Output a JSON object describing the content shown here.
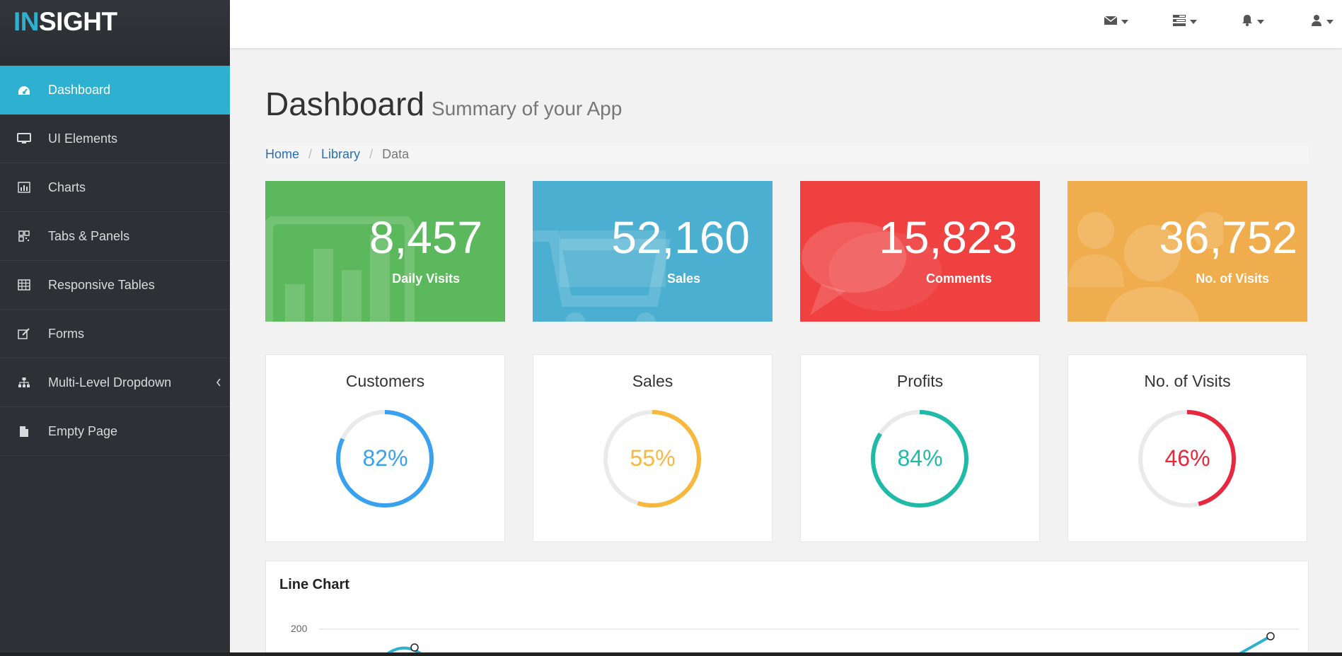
{
  "brand": {
    "accent": "IN",
    "rest": "SIGHT"
  },
  "sidebar": {
    "items": [
      {
        "label": "Dashboard",
        "icon": "dashboard-icon",
        "active": true
      },
      {
        "label": "UI Elements",
        "icon": "desktop-icon"
      },
      {
        "label": "Charts",
        "icon": "bar-chart-icon"
      },
      {
        "label": "Tabs & Panels",
        "icon": "qrcode-icon"
      },
      {
        "label": "Responsive Tables",
        "icon": "table-icon"
      },
      {
        "label": "Forms",
        "icon": "edit-icon"
      },
      {
        "label": "Multi-Level Dropdown",
        "icon": "sitemap-icon"
      },
      {
        "label": "Empty Page",
        "icon": "file-icon"
      }
    ]
  },
  "topbar": {
    "icons": [
      "envelope-icon",
      "tasks-icon",
      "bell-icon",
      "user-icon"
    ]
  },
  "header": {
    "title": "Dashboard",
    "subtitle": "Summary of your App"
  },
  "breadcrumb": {
    "home": "Home",
    "library": "Library",
    "current": "Data",
    "separator": "/"
  },
  "stats": [
    {
      "value": "8,457",
      "label": "Daily Visits",
      "color": "#5cb85c",
      "icon": "bar-chart-icon"
    },
    {
      "value": "52,160",
      "label": "Sales",
      "color": "#4aafd0",
      "icon": "shopping-cart-icon"
    },
    {
      "value": "15,823",
      "label": "Comments",
      "color": "#ef4140",
      "icon": "comments-icon"
    },
    {
      "value": "36,752",
      "label": "No. of Visits",
      "color": "#f0ad4e",
      "icon": "users-icon"
    }
  ],
  "donuts": [
    {
      "title": "Customers",
      "percent": 82,
      "label": "82%",
      "color": "#39a2f0"
    },
    {
      "title": "Sales",
      "percent": 55,
      "label": "55%",
      "color": "#f8b73d"
    },
    {
      "title": "Profits",
      "percent": 84,
      "label": "84%",
      "color": "#1fbba6"
    },
    {
      "title": "No. of Visits",
      "percent": 46,
      "label": "46%",
      "color": "#e8283f"
    }
  ],
  "line_chart": {
    "title": "Line Chart",
    "y_tick": "200"
  }
}
